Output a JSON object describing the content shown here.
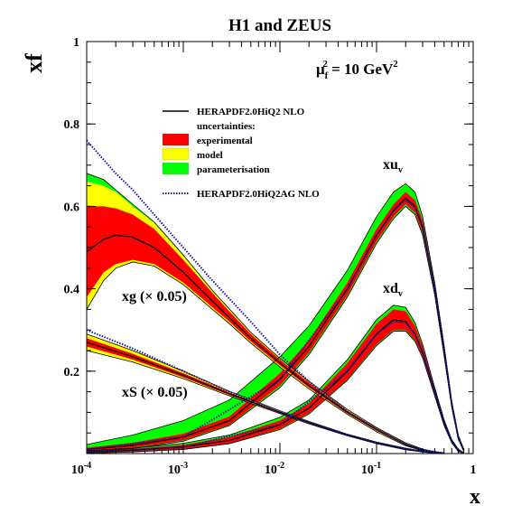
{
  "chart_data": {
    "type": "area",
    "title": "H1 and ZEUS",
    "scale_label": {
      "base": "μ",
      "sub": "f",
      "sup": "2",
      "rest": " = 10 GeV",
      "unit_sup": "2"
    },
    "xlabel": "x",
    "ylabel": "xf",
    "x_scale": "log",
    "xlim": [
      0.0001,
      1
    ],
    "ylim": [
      0,
      1
    ],
    "x_ticks": [
      {
        "value": 0.0001,
        "base": "10",
        "exp": "-4"
      },
      {
        "value": 0.001,
        "base": "10",
        "exp": "-3"
      },
      {
        "value": 0.01,
        "base": "10",
        "exp": "-2"
      },
      {
        "value": 0.1,
        "base": "10",
        "exp": "-1"
      },
      {
        "value": 1,
        "base": "1",
        "exp": ""
      }
    ],
    "y_ticks": [
      {
        "value": 0.2,
        "label": "0.2"
      },
      {
        "value": 0.4,
        "label": "0.4"
      },
      {
        "value": 0.6,
        "label": "0.6"
      },
      {
        "value": 0.8,
        "label": "0.8"
      },
      {
        "value": 1.0,
        "label": "1"
      }
    ],
    "grid": false,
    "legend": {
      "placement": "center-left",
      "central_label": "HERAPDF2.0HiQ2 NLO",
      "uncertainties_label": "uncertainties:",
      "entries": [
        {
          "label": "experimental",
          "color": "#ff0000"
        },
        {
          "label": "model",
          "color": "#ffff00"
        },
        {
          "label": "parameterisation",
          "color": "#00ff00"
        }
      ],
      "alt_label": "HERAPDF2.0HiQ2AG NLO"
    },
    "colors": {
      "experimental": "#ff0000",
      "model": "#ffff00",
      "parameterisation": "#00ff00",
      "central": "#000000",
      "alt": "#1a1aa8"
    },
    "annotations": [
      {
        "id": "xg",
        "text": "xg (× 0.05)"
      },
      {
        "id": "xs",
        "text": "xS (× 0.05)"
      },
      {
        "id": "xuv",
        "base": "xu",
        "sub": "v"
      },
      {
        "id": "xdv",
        "base": "xd",
        "sub": "v"
      }
    ],
    "series": [
      {
        "id": "xuv",
        "x": [
          0.0001,
          0.0003,
          0.001,
          0.003,
          0.01,
          0.02,
          0.05,
          0.1,
          0.15,
          0.2,
          0.25,
          0.3,
          0.4,
          0.5,
          0.6,
          0.7,
          0.8
        ],
        "central": [
          0.01,
          0.02,
          0.04,
          0.08,
          0.18,
          0.26,
          0.4,
          0.53,
          0.59,
          0.62,
          0.6,
          0.55,
          0.4,
          0.25,
          0.12,
          0.04,
          0.008
        ],
        "exp_lo": [
          0.006,
          0.014,
          0.032,
          0.07,
          0.165,
          0.245,
          0.385,
          0.515,
          0.575,
          0.605,
          0.585,
          0.535,
          0.39,
          0.24,
          0.115,
          0.037,
          0.006
        ],
        "exp_hi": [
          0.014,
          0.026,
          0.048,
          0.09,
          0.195,
          0.275,
          0.415,
          0.545,
          0.605,
          0.635,
          0.615,
          0.565,
          0.41,
          0.26,
          0.125,
          0.043,
          0.01
        ],
        "par_lo": [
          0.004,
          0.012,
          0.03,
          0.068,
          0.16,
          0.24,
          0.38,
          0.51,
          0.57,
          0.6,
          0.58,
          0.53,
          0.385,
          0.237,
          0.112,
          0.035,
          0.005
        ],
        "par_hi": [
          0.022,
          0.045,
          0.08,
          0.13,
          0.235,
          0.31,
          0.445,
          0.575,
          0.635,
          0.655,
          0.635,
          0.575,
          0.415,
          0.263,
          0.128,
          0.045,
          0.011
        ]
      },
      {
        "id": "xdv",
        "x": [
          0.0001,
          0.0003,
          0.001,
          0.003,
          0.01,
          0.02,
          0.05,
          0.1,
          0.15,
          0.2,
          0.25,
          0.3,
          0.4,
          0.5,
          0.6,
          0.7,
          0.8
        ],
        "central": [
          0.004,
          0.008,
          0.016,
          0.032,
          0.07,
          0.11,
          0.2,
          0.29,
          0.325,
          0.32,
          0.29,
          0.245,
          0.15,
          0.075,
          0.03,
          0.008,
          0.001
        ],
        "exp_lo": [
          0.002,
          0.005,
          0.011,
          0.025,
          0.06,
          0.098,
          0.18,
          0.265,
          0.3,
          0.3,
          0.275,
          0.235,
          0.142,
          0.07,
          0.027,
          0.006,
          0.0
        ],
        "exp_hi": [
          0.006,
          0.011,
          0.021,
          0.04,
          0.08,
          0.122,
          0.22,
          0.315,
          0.35,
          0.345,
          0.31,
          0.26,
          0.158,
          0.08,
          0.033,
          0.01,
          0.002
        ],
        "par_lo": [
          0.001,
          0.004,
          0.01,
          0.024,
          0.058,
          0.096,
          0.178,
          0.262,
          0.297,
          0.297,
          0.272,
          0.232,
          0.14,
          0.068,
          0.026,
          0.005,
          0.0
        ],
        "par_hi": [
          0.007,
          0.013,
          0.025,
          0.045,
          0.088,
          0.13,
          0.228,
          0.325,
          0.36,
          0.355,
          0.318,
          0.265,
          0.16,
          0.082,
          0.034,
          0.011,
          0.002
        ]
      },
      {
        "id": "xg",
        "x": [
          0.0001,
          0.00015,
          0.0002,
          0.0003,
          0.0005,
          0.001,
          0.002,
          0.003,
          0.005,
          0.01,
          0.02,
          0.05,
          0.1,
          0.2,
          0.3,
          0.4,
          0.5
        ],
        "central": [
          0.49,
          0.52,
          0.53,
          0.525,
          0.5,
          0.44,
          0.37,
          0.33,
          0.28,
          0.22,
          0.165,
          0.1,
          0.058,
          0.022,
          0.009,
          0.003,
          0.001
        ],
        "exp_lo": [
          0.38,
          0.44,
          0.46,
          0.47,
          0.46,
          0.415,
          0.355,
          0.32,
          0.272,
          0.214,
          0.16,
          0.097,
          0.055,
          0.02,
          0.008,
          0.002,
          0.0
        ],
        "exp_hi": [
          0.6,
          0.6,
          0.595,
          0.58,
          0.545,
          0.47,
          0.39,
          0.345,
          0.29,
          0.228,
          0.172,
          0.104,
          0.061,
          0.024,
          0.01,
          0.004,
          0.002
        ],
        "mod_lo": [
          0.35,
          0.42,
          0.45,
          0.465,
          0.455,
          0.41,
          0.35,
          0.315,
          0.268,
          0.21,
          0.157,
          0.095,
          0.053,
          0.019,
          0.007,
          0.002,
          0.0
        ],
        "mod_hi": [
          0.66,
          0.65,
          0.635,
          0.6,
          0.56,
          0.48,
          0.395,
          0.35,
          0.293,
          0.23,
          0.174,
          0.106,
          0.062,
          0.025,
          0.011,
          0.004,
          0.002
        ],
        "par_lo": [
          0.35,
          0.42,
          0.45,
          0.465,
          0.455,
          0.41,
          0.35,
          0.315,
          0.268,
          0.21,
          0.157,
          0.095,
          0.053,
          0.019,
          0.007,
          0.002,
          0.0
        ],
        "par_hi": [
          0.68,
          0.665,
          0.64,
          0.605,
          0.562,
          0.482,
          0.396,
          0.351,
          0.294,
          0.231,
          0.175,
          0.107,
          0.063,
          0.026,
          0.011,
          0.004,
          0.002
        ]
      },
      {
        "id": "xs",
        "x": [
          0.0001,
          0.0003,
          0.001,
          0.003,
          0.01,
          0.02,
          0.05,
          0.1,
          0.2,
          0.3,
          0.4,
          0.5
        ],
        "central": [
          0.27,
          0.235,
          0.19,
          0.145,
          0.1,
          0.075,
          0.045,
          0.026,
          0.011,
          0.005,
          0.002,
          0.0005
        ],
        "exp_lo": [
          0.26,
          0.228,
          0.185,
          0.142,
          0.098,
          0.073,
          0.044,
          0.025,
          0.01,
          0.004,
          0.001,
          0.0
        ],
        "exp_hi": [
          0.28,
          0.242,
          0.195,
          0.148,
          0.102,
          0.077,
          0.046,
          0.027,
          0.012,
          0.006,
          0.003,
          0.001
        ],
        "mod_lo": [
          0.25,
          0.222,
          0.182,
          0.14,
          0.097,
          0.072,
          0.043,
          0.024,
          0.009,
          0.004,
          0.001,
          0.0
        ],
        "mod_hi": [
          0.29,
          0.25,
          0.2,
          0.151,
          0.104,
          0.078,
          0.047,
          0.028,
          0.013,
          0.006,
          0.003,
          0.001
        ]
      }
    ],
    "alt_curves": [
      {
        "id": "xg_alt",
        "x": [
          0.0001,
          0.0002,
          0.0003,
          0.0005,
          0.001,
          0.002,
          0.005,
          0.01,
          0.02,
          0.05,
          0.1,
          0.2,
          0.3,
          0.5
        ],
        "y": [
          0.76,
          0.68,
          0.64,
          0.58,
          0.5,
          0.42,
          0.32,
          0.24,
          0.175,
          0.102,
          0.059,
          0.022,
          0.009,
          0.001
        ]
      },
      {
        "id": "xs_alt",
        "x": [
          0.0001,
          0.0003,
          0.001,
          0.003,
          0.01,
          0.02,
          0.05,
          0.1,
          0.2,
          0.3,
          0.5
        ],
        "y": [
          0.3,
          0.255,
          0.2,
          0.15,
          0.102,
          0.076,
          0.045,
          0.026,
          0.011,
          0.005,
          0.0005
        ]
      },
      {
        "id": "xuv_alt",
        "x": [
          0.0001,
          0.001,
          0.01,
          0.05,
          0.1,
          0.15,
          0.2,
          0.25,
          0.3,
          0.4,
          0.5,
          0.6,
          0.7,
          0.8
        ],
        "y": [
          0.01,
          0.04,
          0.18,
          0.4,
          0.53,
          0.59,
          0.615,
          0.598,
          0.55,
          0.4,
          0.25,
          0.12,
          0.04,
          0.008
        ]
      },
      {
        "id": "xdv_alt",
        "x": [
          0.0001,
          0.001,
          0.01,
          0.05,
          0.1,
          0.15,
          0.2,
          0.25,
          0.3,
          0.4,
          0.5,
          0.6,
          0.7,
          0.8
        ],
        "y": [
          0.004,
          0.016,
          0.07,
          0.2,
          0.29,
          0.32,
          0.318,
          0.288,
          0.245,
          0.15,
          0.075,
          0.03,
          0.008,
          0.001
        ]
      }
    ]
  }
}
